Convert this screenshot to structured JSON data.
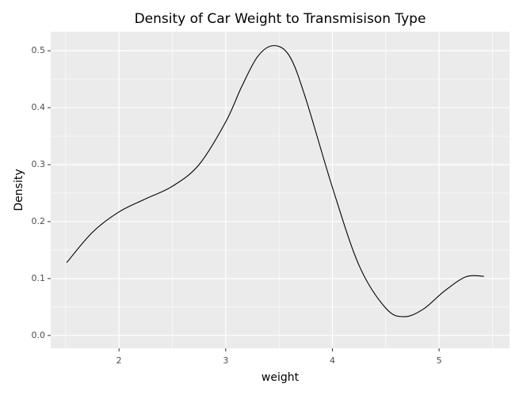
{
  "chart_data": {
    "type": "line",
    "title": "Density of Car Weight to Transmisison Type",
    "xlabel": "weight",
    "ylabel": "Density",
    "xlim": [
      1.36,
      5.66
    ],
    "ylim": [
      -0.0225,
      0.5335
    ],
    "x_ticks": [
      2,
      3,
      4,
      5
    ],
    "x_tick_labels": [
      "2",
      "3",
      "4",
      "5"
    ],
    "y_ticks": [
      0.0,
      0.1,
      0.2,
      0.3,
      0.4,
      0.5
    ],
    "y_tick_labels": [
      "0.0",
      "0.1",
      "0.2",
      "0.3",
      "0.4",
      "0.5"
    ],
    "grid": true,
    "colors": {
      "panel": "#ebebeb",
      "grid": "#ffffff",
      "line": "#000000"
    },
    "series": [
      {
        "x": [
          1.51,
          1.75,
          2.0,
          2.25,
          2.5,
          2.75,
          3.0,
          3.15,
          3.3,
          3.45,
          3.6,
          3.75,
          4.0,
          4.25,
          4.5,
          4.67,
          4.85,
          5.05,
          5.25,
          5.42
        ],
        "y": [
          0.128,
          0.181,
          0.217,
          0.24,
          0.262,
          0.3,
          0.375,
          0.437,
          0.49,
          0.509,
          0.49,
          0.416,
          0.26,
          0.123,
          0.048,
          0.033,
          0.046,
          0.078,
          0.103,
          0.104
        ]
      }
    ]
  }
}
